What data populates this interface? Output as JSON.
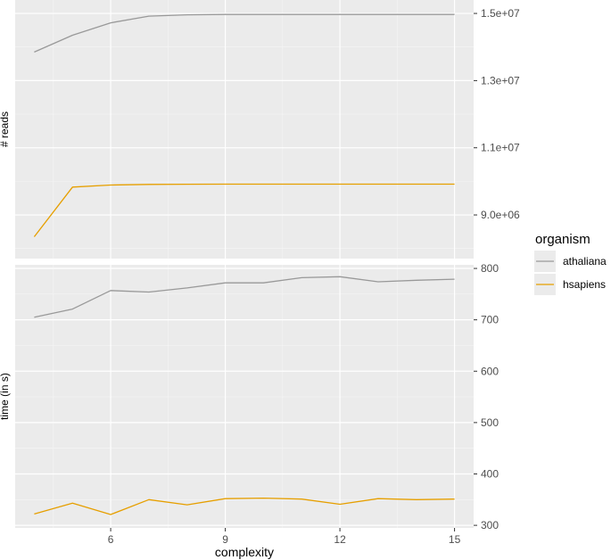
{
  "chart_data": [
    {
      "type": "line",
      "panel": "top",
      "ylabel": "# reads",
      "xlabel": "",
      "y_axis_side": "right",
      "ylim": [
        7700000,
        15400000
      ],
      "yticks": [
        9000000,
        11000000,
        13000000,
        15000000
      ],
      "ytick_labels": [
        "9.0e+06",
        "1.1e+07",
        "1.3e+07",
        "1.5e+07"
      ],
      "xlim": [
        3.5,
        15.5
      ],
      "grid": true,
      "x": [
        4,
        5,
        6,
        7,
        8,
        9,
        10,
        11,
        12,
        13,
        14,
        15
      ],
      "series": [
        {
          "name": "athaliana",
          "color": "#999999",
          "values": [
            13850000,
            14350000,
            14720000,
            14920000,
            14960000,
            14970000,
            14970000,
            14970000,
            14970000,
            14970000,
            14970000,
            14970000
          ]
        },
        {
          "name": "hsapiens",
          "color": "#E69F00",
          "values": [
            8350000,
            9830000,
            9890000,
            9910000,
            9915000,
            9918000,
            9918000,
            9918000,
            9918000,
            9918000,
            9918000,
            9918000
          ]
        }
      ]
    },
    {
      "type": "line",
      "panel": "bottom",
      "ylabel": "time (in s)",
      "xlabel": "complexity",
      "y_axis_side": "right",
      "ylim": [
        295,
        807
      ],
      "yticks": [
        300,
        400,
        500,
        600,
        700,
        800
      ],
      "ytick_labels": [
        "300",
        "400",
        "500",
        "600",
        "700",
        "800"
      ],
      "xlim": [
        3.5,
        15.5
      ],
      "xticks": [
        6,
        9,
        12,
        15
      ],
      "xtick_labels": [
        "6",
        "9",
        "12",
        "15"
      ],
      "grid": true,
      "x": [
        4,
        5,
        6,
        7,
        8,
        9,
        10,
        11,
        12,
        13,
        14,
        15
      ],
      "series": [
        {
          "name": "athaliana",
          "color": "#999999",
          "values": [
            705,
            721,
            757,
            754,
            762,
            772,
            772,
            782,
            784,
            774,
            777,
            779
          ]
        },
        {
          "name": "hsapiens",
          "color": "#E69F00",
          "values": [
            322,
            343,
            321,
            350,
            340,
            352,
            353,
            351,
            341,
            352,
            350,
            351
          ]
        }
      ]
    }
  ],
  "legend": {
    "title": "organism",
    "placement": "right",
    "items": [
      {
        "label": "athaliana",
        "color": "#999999"
      },
      {
        "label": "hsapiens",
        "color": "#E69F00"
      }
    ]
  }
}
